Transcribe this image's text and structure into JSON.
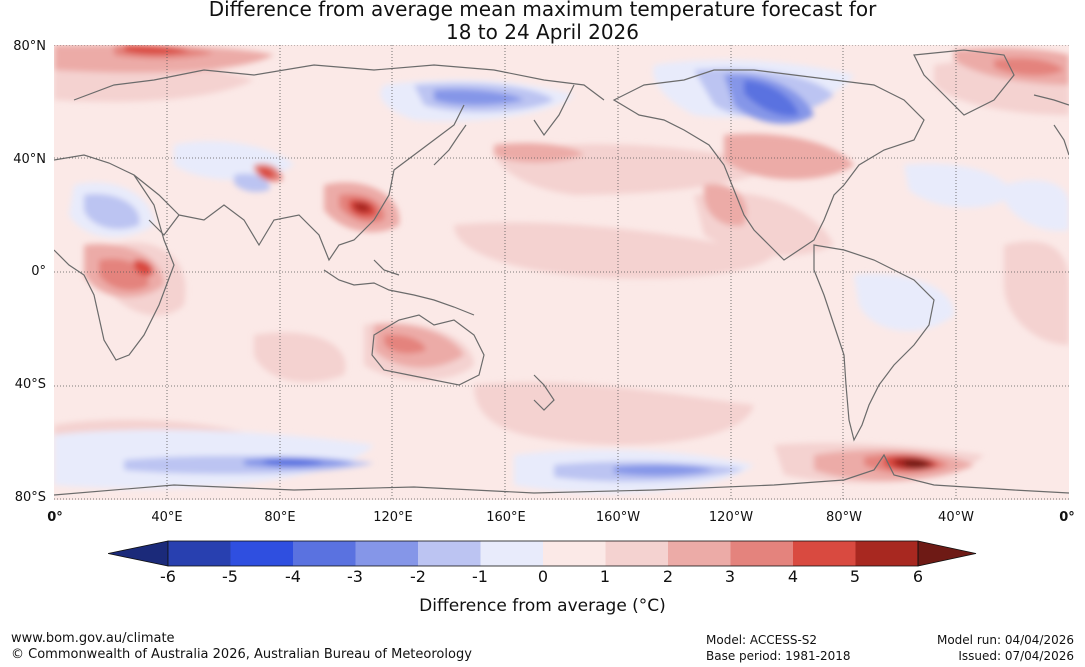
{
  "title": {
    "line1": "Difference from average mean maximum temperature forecast for",
    "line2": "18 to 24 April 2026"
  },
  "map": {
    "projection": "equirectangular",
    "central_longitude": "Pacific-centred (0° to 0°)",
    "lat_labels": [
      "80°N",
      "40°N",
      "0°",
      "40°S",
      "80°S"
    ],
    "lon_labels": [
      "0°",
      "40°E",
      "80°E",
      "120°E",
      "160°E",
      "160°W",
      "120°W",
      "80°W",
      "40°W",
      "0°"
    ],
    "anomaly_regions": [
      {
        "area": "Western Canada / Alaska",
        "anomaly_c": -3,
        "note": "cooler than average"
      },
      {
        "area": "Northern Eurasia",
        "anomaly_c": -2,
        "note": "cooler than average"
      },
      {
        "area": "Southern China",
        "anomaly_c": 4,
        "note": "warmer than average"
      },
      {
        "area": "Central Africa",
        "anomaly_c": 4,
        "note": "warmer than average"
      },
      {
        "area": "Central Australia",
        "anomaly_c": 3,
        "note": "warmer than average"
      },
      {
        "area": "Eastern USA",
        "anomaly_c": 2,
        "note": "warmer than average"
      },
      {
        "area": "Antarctic Peninsula / Weddell Sea",
        "anomaly_c": 6,
        "note": "much warmer than average"
      },
      {
        "area": "Southern Ocean south of Indian Ocean",
        "anomaly_c": -3,
        "note": "cooler than average"
      },
      {
        "area": "Eastern Brazil",
        "anomaly_c": -1,
        "note": "slightly cooler than average"
      }
    ]
  },
  "colorbar": {
    "ticks": [
      "-6",
      "-5",
      "-4",
      "-3",
      "-2",
      "-1",
      "0",
      "1",
      "2",
      "3",
      "4",
      "5",
      "6"
    ],
    "colors": {
      "lt_-6": "#1b2a7a",
      "-6_-5": "#2840b0",
      "-5_-4": "#2f4fe0",
      "-4_-3": "#5a72e0",
      "-3_-2": "#8596e8",
      "-2_-1": "#bcc4f2",
      "-1_0": "#e8ebfb",
      "0_1": "#fbe9e7",
      "1_2": "#f4d2d0",
      "2_3": "#ecaba7",
      "3_4": "#e4837d",
      "4_5": "#d94a40",
      "5_6": "#a82820",
      "gt_6": "#6e1a15"
    },
    "label": "Difference from average (°C)"
  },
  "footer": {
    "url": "www.bom.gov.au/climate",
    "copyright": "© Commonwealth of Australia 2026, Australian Bureau of Meteorology",
    "model": "Model: ACCESS-S2",
    "base_period": "Base period: 1981-2018",
    "model_run": "Model run: 04/04/2026",
    "issued": "Issued: 07/04/2026"
  }
}
